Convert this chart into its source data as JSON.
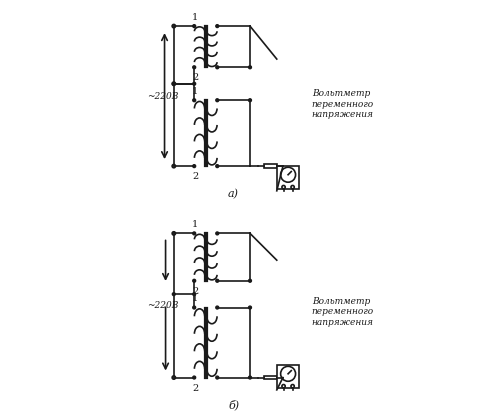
{
  "bg_color": "#ffffff",
  "line_color": "#1a1a1a",
  "fig_width": 5.0,
  "fig_height": 4.16,
  "dpi": 100,
  "label_a": "а)",
  "label_b": "б)",
  "text_voltmeter": "Вольтметр\nпеременного\nнапряжения",
  "text_220": "~220В",
  "label_1_top_a": "1",
  "label_2_mid_a": "2",
  "label_1_mid_a": "1",
  "label_2_bot_a": "2"
}
